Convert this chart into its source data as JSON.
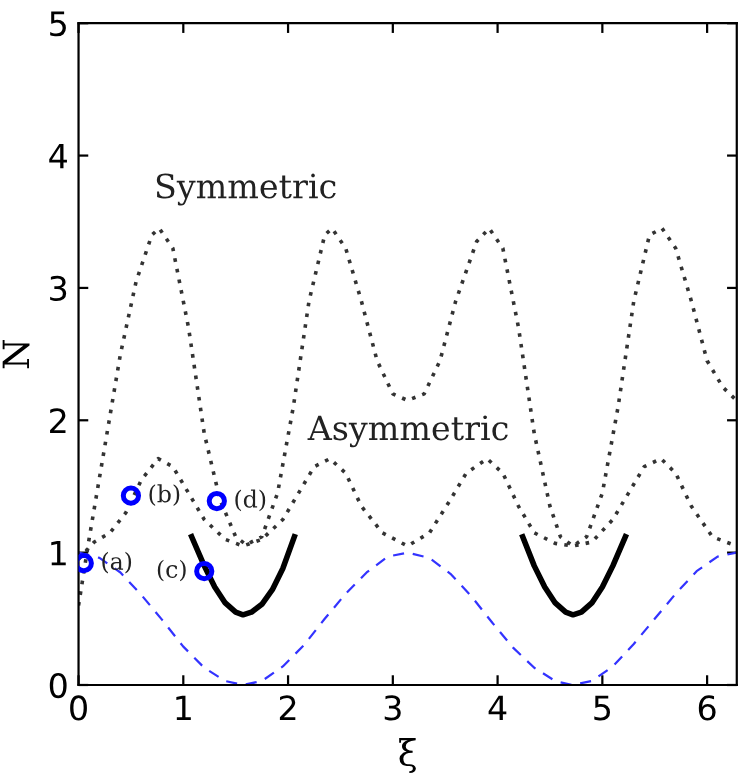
{
  "chart_data": {
    "type": "line",
    "xlabel": "ξ",
    "ylabel": "N",
    "xlim": [
      0,
      6.2832
    ],
    "ylim": [
      0,
      5
    ],
    "xticks": [
      0,
      1,
      2,
      3,
      4,
      5,
      6
    ],
    "yticks": [
      0,
      1,
      2,
      3,
      4,
      5
    ],
    "grid": false,
    "legend": false,
    "series": [
      {
        "name": "Symmetric",
        "color": "#333333",
        "line_style": "dotted",
        "x": [
          0,
          0.1,
          0.25,
          0.4,
          0.55,
          0.7,
          0.77,
          0.9,
          1.05,
          1.2,
          1.35,
          1.5,
          1.6,
          1.75,
          1.9,
          2.05,
          2.2,
          2.35,
          2.42,
          2.55,
          2.7,
          2.85,
          3.0,
          3.14,
          3.3,
          3.45,
          3.6,
          3.8,
          3.92,
          4.05,
          4.2,
          4.35,
          4.5,
          4.6,
          4.72,
          4.85,
          5.0,
          5.15,
          5.3,
          5.45,
          5.57,
          5.7,
          5.85,
          6.0,
          6.15,
          6.28
        ],
        "values": [
          0.6,
          1.1,
          1.8,
          2.5,
          3.05,
          3.4,
          3.45,
          3.3,
          2.7,
          1.9,
          1.4,
          1.12,
          1.06,
          1.12,
          1.45,
          2.1,
          2.9,
          3.4,
          3.45,
          3.3,
          2.9,
          2.45,
          2.2,
          2.15,
          2.2,
          2.45,
          2.9,
          3.35,
          3.45,
          3.3,
          2.7,
          1.9,
          1.35,
          1.12,
          1.05,
          1.12,
          1.45,
          2.1,
          2.9,
          3.4,
          3.45,
          3.3,
          2.9,
          2.45,
          2.25,
          2.15
        ]
      },
      {
        "name": "Asymmetric",
        "color": "#333333",
        "line_style": "dotted",
        "x": [
          0,
          0.15,
          0.3,
          0.45,
          0.6,
          0.76,
          0.9,
          1.05,
          1.2,
          1.4,
          1.57,
          1.75,
          1.95,
          2.1,
          2.25,
          2.4,
          2.55,
          2.7,
          2.9,
          3.14,
          3.35,
          3.55,
          3.7,
          3.9,
          4.05,
          4.2,
          4.35,
          4.55,
          4.72,
          4.9,
          5.1,
          5.25,
          5.4,
          5.56,
          5.7,
          5.85,
          6.05,
          6.28
        ],
        "values": [
          0.95,
          1.08,
          1.15,
          1.3,
          1.55,
          1.71,
          1.65,
          1.45,
          1.25,
          1.1,
          1.05,
          1.1,
          1.25,
          1.45,
          1.65,
          1.71,
          1.6,
          1.35,
          1.15,
          1.05,
          1.15,
          1.4,
          1.6,
          1.71,
          1.6,
          1.35,
          1.15,
          1.07,
          1.05,
          1.08,
          1.25,
          1.45,
          1.65,
          1.71,
          1.6,
          1.35,
          1.12,
          1.05
        ]
      },
      {
        "color": "#3333ff",
        "line_style": "dashed",
        "x": [
          0,
          0.2,
          0.4,
          0.6,
          0.8,
          1.0,
          1.2,
          1.4,
          1.57,
          1.75,
          1.95,
          2.15,
          2.35,
          2.55,
          2.75,
          2.95,
          3.14,
          3.35,
          3.55,
          3.75,
          3.95,
          4.15,
          4.35,
          4.55,
          4.71,
          4.9,
          5.1,
          5.3,
          5.5,
          5.7,
          5.9,
          6.1,
          6.28
        ],
        "values": [
          1,
          0.96,
          0.85,
          0.68,
          0.49,
          0.29,
          0.13,
          0.03,
          0,
          0.03,
          0.14,
          0.3,
          0.5,
          0.69,
          0.85,
          0.97,
          1,
          0.96,
          0.84,
          0.67,
          0.47,
          0.28,
          0.13,
          0.03,
          0,
          0.03,
          0.14,
          0.31,
          0.5,
          0.69,
          0.86,
          0.97,
          1
        ]
      },
      {
        "color": "#000000",
        "line_style": "solid",
        "x": [
          1.08,
          1.2,
          1.3,
          1.4,
          1.5,
          1.57,
          1.65,
          1.75,
          1.85,
          1.95,
          2.06
        ],
        "values": [
          1.12,
          0.9,
          0.74,
          0.62,
          0.55,
          0.53,
          0.55,
          0.61,
          0.72,
          0.88,
          1.12
        ]
      },
      {
        "color": "#000000",
        "line_style": "solid",
        "x": [
          4.24,
          4.35,
          4.45,
          4.55,
          4.65,
          4.72,
          4.8,
          4.9,
          5.0,
          5.1,
          5.22
        ],
        "values": [
          1.12,
          0.9,
          0.74,
          0.62,
          0.55,
          0.53,
          0.55,
          0.62,
          0.74,
          0.9,
          1.12
        ]
      },
      {
        "type": "scatter",
        "color": "#0000ff",
        "marker": "circle",
        "x": [
          0.05,
          0.5,
          1.2,
          1.32
        ],
        "values": [
          0.92,
          1.43,
          0.86,
          1.39
        ]
      }
    ],
    "annotations": [
      {
        "text": "(a)",
        "x": 0.05,
        "y": 0.92
      },
      {
        "text": "(b)",
        "x": 0.5,
        "y": 1.43
      },
      {
        "text": "(c)",
        "x": 1.2,
        "y": 0.86
      },
      {
        "text": "(d)",
        "x": 1.32,
        "y": 1.39
      }
    ]
  }
}
